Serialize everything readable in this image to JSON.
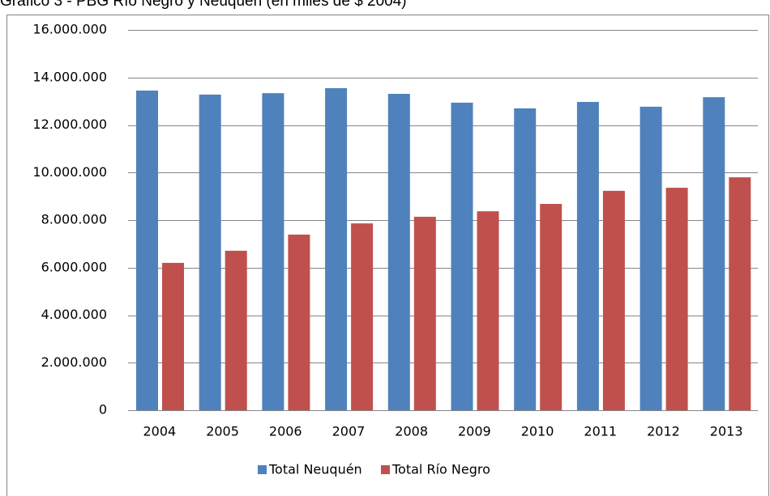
{
  "chart_data": {
    "type": "bar",
    "title": "Gráfico 3 - PBG Río Negro y Neuquén (en miles de $ 2004)",
    "categories": [
      "2004",
      "2005",
      "2006",
      "2007",
      "2008",
      "2009",
      "2010",
      "2011",
      "2012",
      "2013"
    ],
    "series": [
      {
        "name": "Total Neuquén",
        "color": "#4f81bd",
        "values": [
          13450000,
          13280000,
          13340000,
          13550000,
          13310000,
          12940000,
          12700000,
          12970000,
          12770000,
          13170000
        ]
      },
      {
        "name": "Total Río Negro",
        "color": "#c0504d",
        "values": [
          6200000,
          6710000,
          7390000,
          7860000,
          8140000,
          8370000,
          8680000,
          9230000,
          9360000,
          9800000
        ]
      }
    ],
    "ylim": [
      0,
      16000000
    ],
    "yticks": [
      0,
      {
        "value": 2000000,
        "label": "2.000.000"
      },
      {
        "value": 4000000,
        "label": "4.000.000"
      },
      {
        "value": 6000000,
        "label": "6.000.000"
      },
      {
        "value": 8000000,
        "label": "8.000.000"
      },
      {
        "value": 10000000,
        "label": "10.000.000"
      },
      {
        "value": 12000000,
        "label": "12.000.000"
      },
      {
        "value": 14000000,
        "label": "14.000.000"
      },
      {
        "value": 16000000,
        "label": "16.000.000"
      }
    ],
    "grid": true,
    "legend": "bottom"
  }
}
